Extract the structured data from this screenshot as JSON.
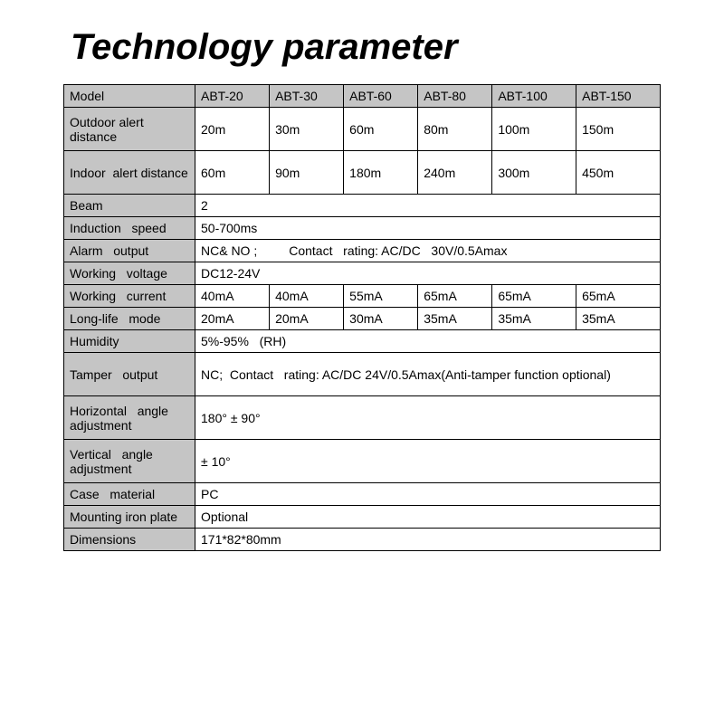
{
  "title": "Technology parameter",
  "colors": {
    "header_bg": "#c5c5c5",
    "data_bg": "#ffffff",
    "border": "#000000",
    "text": "#000000"
  },
  "typography": {
    "title_fontsize": 40,
    "title_weight": 900,
    "title_style": "italic",
    "cell_fontsize": 14
  },
  "table": {
    "columns": [
      "Model",
      "ABT-20",
      "ABT-30",
      "ABT-60",
      "ABT-80",
      "ABT-100",
      "ABT-150"
    ],
    "rows": [
      {
        "label": "Outdoor alert distance",
        "values": [
          "20m",
          "30m",
          "60m",
          "80m",
          "100m",
          "150m"
        ],
        "height": "tall"
      },
      {
        "label": "Indoor  alert distance",
        "values": [
          "60m",
          "90m",
          "180m",
          "240m",
          "300m",
          "450m"
        ],
        "height": "tall"
      },
      {
        "label": "Beam",
        "span_value": "2",
        "height": "short"
      },
      {
        "label": "Induction   speed",
        "span_value": "50-700ms",
        "height": "short"
      },
      {
        "label": "Alarm   output",
        "span_value": "NC& NO ;         Contact   rating: AC/DC   30V/0.5Amax",
        "height": "short"
      },
      {
        "label": "Working   voltage",
        "span_value": "DC12-24V",
        "height": "short"
      },
      {
        "label": "Working   current",
        "values": [
          "40mA",
          "40mA",
          "55mA",
          "65mA",
          "65mA",
          "65mA"
        ],
        "height": "short"
      },
      {
        "label": "Long-life   mode",
        "values": [
          "20mA",
          "20mA",
          "30mA",
          "35mA",
          "35mA",
          "35mA"
        ],
        "height": "short"
      },
      {
        "label": "Humidity",
        "span_value": "5%-95%   (RH)",
        "height": "short"
      },
      {
        "label": "Tamper   output",
        "span_value": "NC;  Contact   rating: AC/DC 24V/0.5Amax(Anti-tamper function optional)",
        "height": "tall"
      },
      {
        "label": "Horizontal   angle adjustment",
        "span_value": "180° ± 90°",
        "height": "tall"
      },
      {
        "label": "Vertical   angle adjustment",
        "span_value": "± 10°",
        "height": "tall"
      },
      {
        "label": "Case   material",
        "span_value": "PC",
        "height": "short"
      },
      {
        "label": "Mounting iron plate",
        "span_value": "Optional",
        "height": "short"
      },
      {
        "label": "Dimensions",
        "span_value": "171*82*80mm",
        "height": "short"
      }
    ]
  }
}
